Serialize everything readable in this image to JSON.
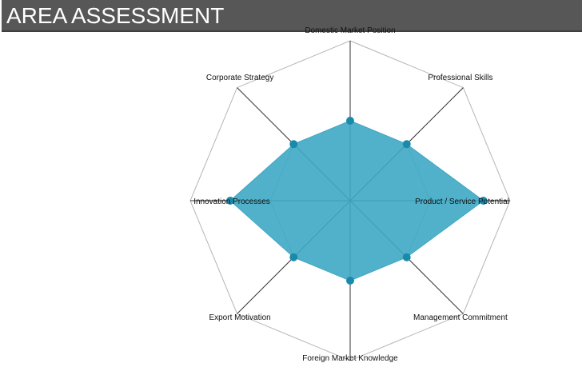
{
  "header": {
    "title": "AREA ASSESSMENT"
  },
  "colors": {
    "header_bg": "#575757",
    "fill": "#3ea8c4",
    "point": "#1a8aab",
    "grid": "#b5b5b5",
    "spoke": "#333333"
  },
  "chart_data": {
    "type": "radar",
    "title": "",
    "axes": [
      "Domestic Market Position",
      "Professional Skills",
      "Product / Service Potential",
      "Management Commitment",
      "Foreign Market Knowledge",
      "Export Motivation",
      "Innovation Processes",
      "Corporate Strategy"
    ],
    "series": [
      {
        "values": [
          3.0,
          3.0,
          5.0,
          3.0,
          3.0,
          3.0,
          4.5,
          3.0
        ]
      }
    ],
    "ylim": [
      0,
      6
    ],
    "grid": true,
    "grid_levels": [
      3,
      6
    ]
  }
}
